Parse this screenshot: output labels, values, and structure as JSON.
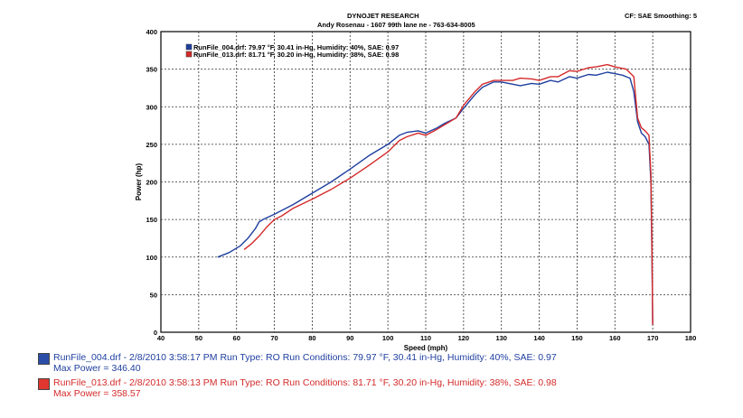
{
  "header": {
    "title": "DYNOJET RESEARCH",
    "subtitle": "Andy Rosenau - 1607 99th lane ne - 763-634-8005",
    "cf_label": "CF: SAE  Smoothing: 5"
  },
  "colors": {
    "run1": "#1f3f9f",
    "run2": "#d42a2a"
  },
  "chart_data": {
    "type": "line",
    "xlabel": "Speed (mph)",
    "ylabel": "Power (hp)",
    "xlim": [
      40,
      180
    ],
    "ylim": [
      0,
      400
    ],
    "xticks": [
      40,
      50,
      60,
      70,
      80,
      90,
      100,
      110,
      120,
      130,
      140,
      150,
      160,
      170,
      180
    ],
    "yticks": [
      0,
      50,
      100,
      150,
      200,
      250,
      300,
      350,
      400
    ],
    "grid": true,
    "legend_position": "top-left",
    "series": [
      {
        "name": "RunFile_004.drf: 79.97 °F, 30.41 in-Hg, Humidity: 40%, SAE: 0.97",
        "color": "#1f3f9f",
        "x": [
          55,
          58,
          61,
          63,
          65,
          66,
          67,
          70,
          75,
          80,
          85,
          90,
          95,
          100,
          103,
          105,
          108,
          110,
          113,
          115,
          118,
          120,
          123,
          125,
          128,
          130,
          133,
          135,
          138,
          140,
          143,
          145,
          148,
          150,
          153,
          155,
          158,
          160,
          162,
          164,
          165,
          166,
          167,
          168,
          169,
          169.5,
          169.8,
          170
        ],
        "y": [
          100,
          106,
          115,
          125,
          138,
          147,
          150,
          157,
          170,
          185,
          200,
          217,
          235,
          250,
          262,
          266,
          268,
          265,
          272,
          278,
          285,
          298,
          316,
          326,
          333,
          333,
          330,
          328,
          331,
          330,
          335,
          333,
          340,
          338,
          343,
          342,
          346,
          344,
          342,
          338,
          320,
          280,
          265,
          260,
          250,
          200,
          100,
          10
        ]
      },
      {
        "name": "RunFile_013.drf: 81.71 °F, 30.20 in-Hg, Humidity: 38%, SAE: 0.98",
        "color": "#d42a2a",
        "x": [
          62,
          64,
          66,
          68,
          70,
          72,
          75,
          80,
          85,
          90,
          95,
          100,
          103,
          105,
          108,
          110,
          113,
          115,
          118,
          120,
          123,
          125,
          128,
          130,
          133,
          135,
          138,
          140,
          143,
          145,
          148,
          150,
          153,
          155,
          158,
          160,
          163,
          165,
          166,
          167,
          168,
          169,
          169.5,
          169.8,
          170
        ],
        "y": [
          110,
          118,
          128,
          140,
          150,
          155,
          165,
          177,
          190,
          205,
          222,
          240,
          255,
          260,
          265,
          262,
          270,
          276,
          285,
          302,
          320,
          330,
          335,
          335,
          335,
          338,
          337,
          335,
          340,
          340,
          348,
          347,
          352,
          353,
          356,
          353,
          350,
          340,
          285,
          272,
          268,
          262,
          210,
          110,
          10
        ]
      }
    ]
  },
  "legend_bottom": [
    {
      "text": "RunFile_004.drf - 2/8/2010 3:58:17 PM  Run Type: RO  Run Conditions: 79.97 °F, 30.41 in-Hg,  Humidity:  40%, SAE: 0.97",
      "max_power": "Max Power = 346.40"
    },
    {
      "text": "RunFile_013.drf - 2/8/2010 3:58:13 PM  Run Type: RO  Run Conditions: 81.71 °F, 30.20 in-Hg,  Humidity:  38%, SAE: 0.98",
      "max_power": "Max Power = 358.57"
    }
  ]
}
